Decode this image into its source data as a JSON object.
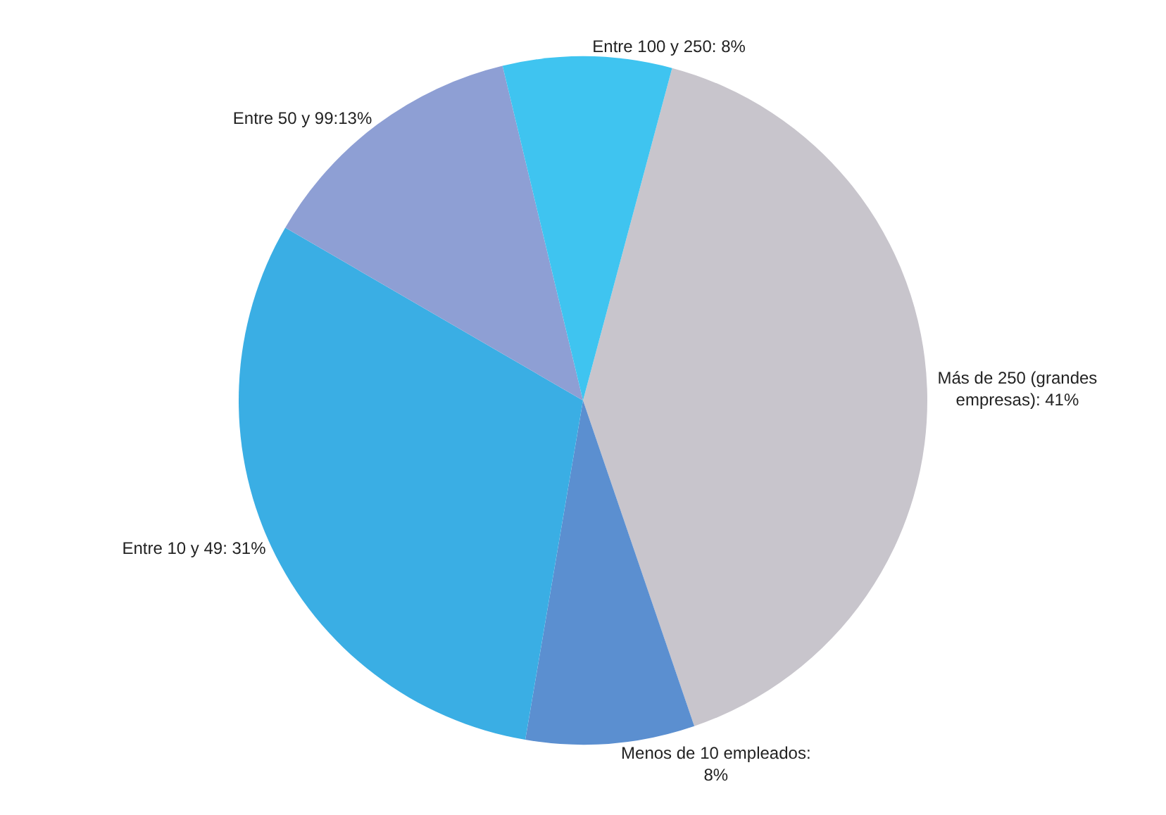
{
  "chart_data": {
    "type": "pie",
    "categories": [
      "Más de 250 (grandes\nempresas): 41%",
      "Menos de 10 empleados:\n8%",
      "Entre 10 y 49: 31%",
      "Entre 50 y 99:13%",
      "Entre 100 y 250: 8%"
    ],
    "values": [
      41,
      8,
      31,
      13,
      8
    ],
    "colors": [
      "#c8c5cc",
      "#5b8fd0",
      "#3aaee4",
      "#8e9fd4",
      "#3fc4f0"
    ],
    "legend": false
  }
}
